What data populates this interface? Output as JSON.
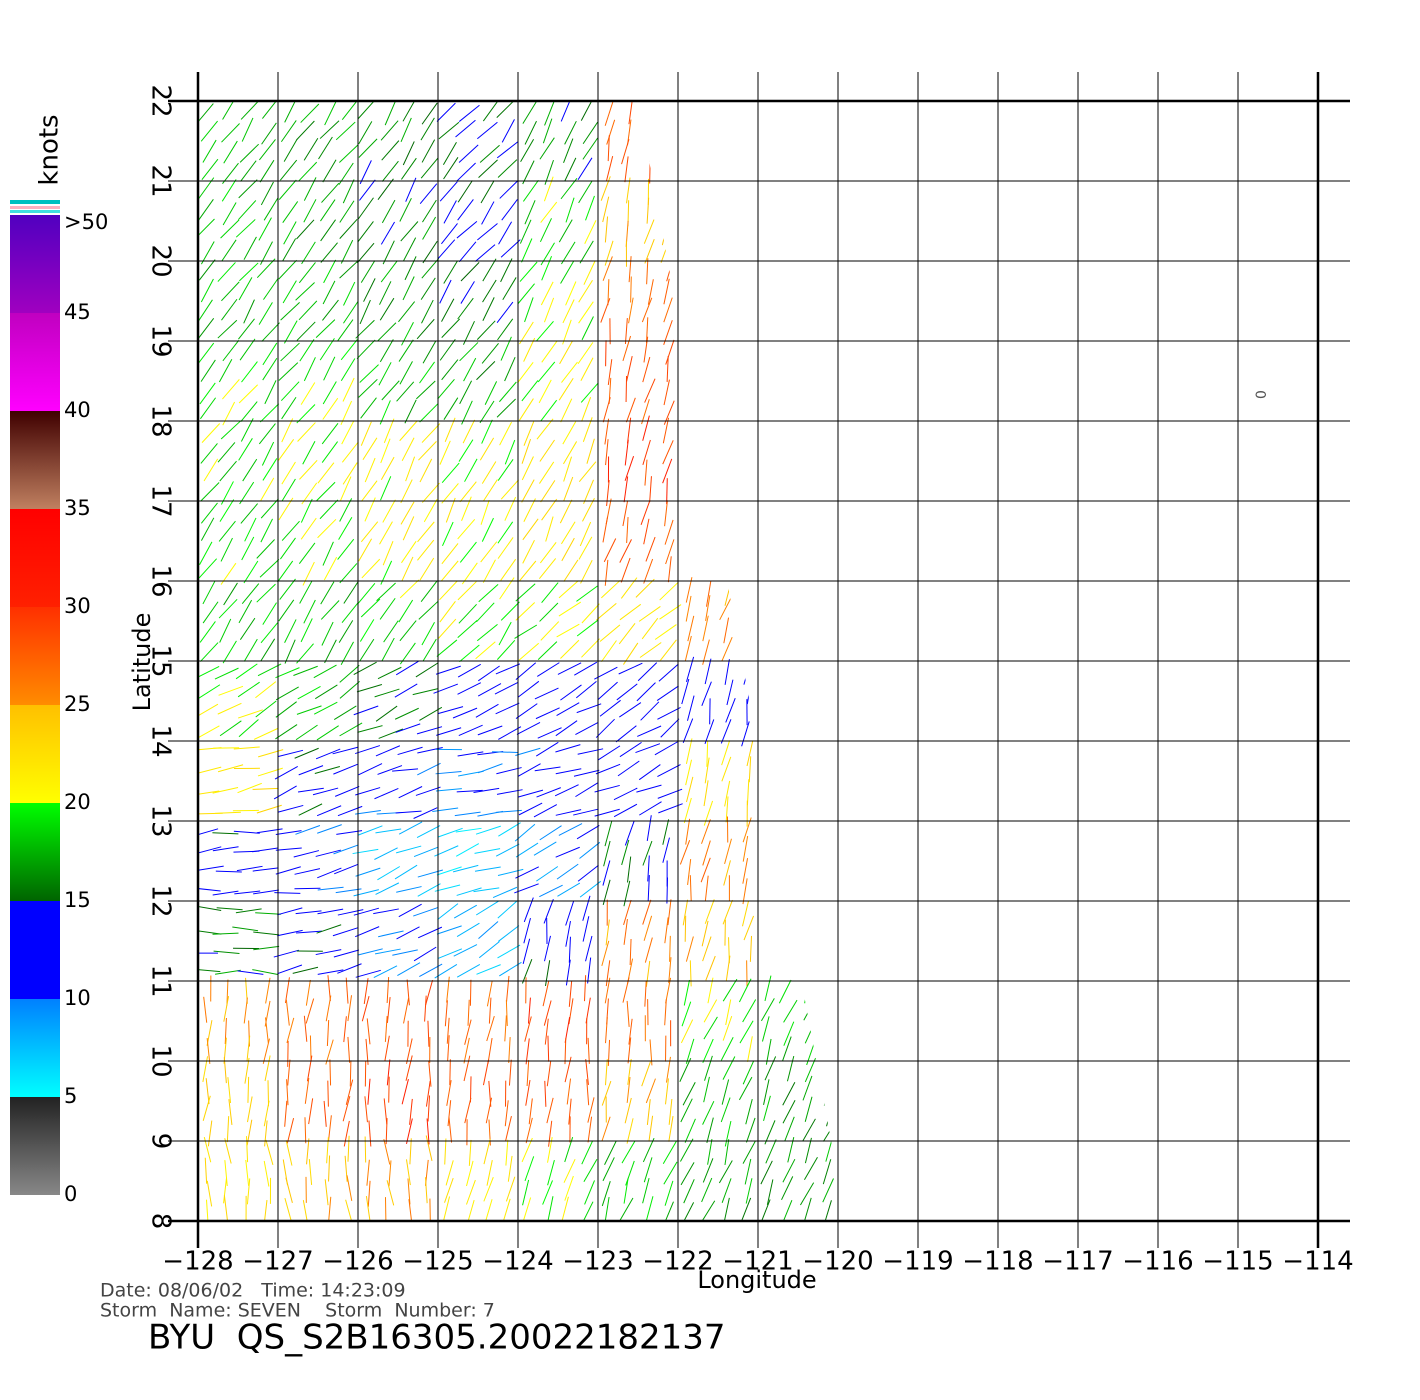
{
  "chart_data": {
    "type": "wind_vectors",
    "xlabel": "Longitude",
    "ylabel": "Latitude",
    "xlim": [
      -128,
      -114
    ],
    "ylim": [
      8,
      22
    ],
    "xticks": [
      {
        "value": -128,
        "label": "−128"
      },
      {
        "value": -127,
        "label": "−127"
      },
      {
        "value": -126,
        "label": "−126"
      },
      {
        "value": -125,
        "label": "−125"
      },
      {
        "value": -124,
        "label": "−124"
      },
      {
        "value": -123,
        "label": "−123"
      },
      {
        "value": -122,
        "label": "−122"
      },
      {
        "value": -121,
        "label": "−121"
      },
      {
        "value": -120,
        "label": "−120"
      },
      {
        "value": -119,
        "label": "−119"
      },
      {
        "value": -118,
        "label": "−118"
      },
      {
        "value": -117,
        "label": "−117"
      },
      {
        "value": -116,
        "label": "−116"
      },
      {
        "value": -115,
        "label": "−115"
      },
      {
        "value": -114,
        "label": "−114"
      }
    ],
    "yticks": [
      8,
      9,
      10,
      11,
      12,
      13,
      14,
      15,
      16,
      17,
      18,
      19,
      20,
      21,
      22
    ],
    "grid": true,
    "swath_edge": {
      "lat": [
        22,
        8
      ],
      "lon": [
        -122.5,
        -119.9
      ]
    },
    "wind": {
      "lon": [
        -127.5,
        -126.5,
        -125.5,
        -124.5,
        -123.5,
        -122.5,
        -121.5,
        -120.5,
        -119.5
      ],
      "lat": [
        21.5,
        20.5,
        19.5,
        18.5,
        17.5,
        16.5,
        15.5,
        14.5,
        13.5,
        12.5,
        11.5,
        10.5,
        9.5,
        8.5
      ],
      "speed": [
        [
          18,
          17,
          16,
          15,
          16,
          28,
          null,
          null,
          null
        ],
        [
          18,
          17,
          16,
          14,
          19,
          24,
          null,
          null,
          null
        ],
        [
          18,
          18,
          17,
          15,
          20,
          27,
          null,
          null,
          null
        ],
        [
          19,
          19,
          18,
          17,
          21,
          28,
          null,
          null,
          null
        ],
        [
          19,
          20,
          21,
          21,
          22,
          29,
          null,
          null,
          null
        ],
        [
          19,
          20,
          21,
          21,
          22,
          28,
          null,
          null,
          null
        ],
        [
          18,
          18,
          19,
          20,
          20,
          22,
          26,
          null,
          null
        ],
        [
          20,
          18,
          15,
          13,
          12,
          12,
          13,
          null,
          null
        ],
        [
          22,
          14,
          11,
          10,
          11,
          12,
          22,
          null,
          null
        ],
        [
          14,
          11,
          8,
          7,
          9,
          15,
          26,
          null,
          null
        ],
        [
          16,
          14,
          10,
          8,
          14,
          26,
          24,
          null,
          null
        ],
        [
          25,
          27,
          28,
          27,
          29,
          27,
          20,
          18,
          null
        ],
        [
          24,
          28,
          29,
          28,
          28,
          24,
          18,
          17,
          null
        ],
        [
          22,
          24,
          25,
          22,
          20,
          18,
          17,
          17,
          null
        ]
      ],
      "direction": [
        [
          55,
          55,
          55,
          50,
          60,
          80,
          null,
          null,
          null
        ],
        [
          55,
          55,
          55,
          50,
          60,
          80,
          null,
          null,
          null
        ],
        [
          55,
          55,
          55,
          55,
          60,
          80,
          null,
          null,
          null
        ],
        [
          55,
          55,
          55,
          55,
          60,
          78,
          null,
          null,
          null
        ],
        [
          55,
          55,
          58,
          60,
          62,
          78,
          null,
          null,
          null
        ],
        [
          55,
          55,
          58,
          60,
          62,
          75,
          null,
          null,
          null
        ],
        [
          55,
          55,
          55,
          50,
          40,
          45,
          70,
          null,
          null
        ],
        [
          30,
          30,
          25,
          25,
          30,
          35,
          80,
          null,
          null
        ],
        [
          10,
          20,
          15,
          10,
          20,
          25,
          80,
          null,
          null
        ],
        [
          5,
          10,
          20,
          20,
          30,
          80,
          80,
          null,
          null
        ],
        [
          0,
          10,
          20,
          30,
          80,
          80,
          80,
          null,
          null
        ],
        [
          85,
          85,
          85,
          85,
          85,
          85,
          70,
          70,
          null
        ],
        [
          85,
          85,
          85,
          85,
          85,
          80,
          70,
          70,
          null
        ],
        [
          95,
          95,
          95,
          80,
          70,
          70,
          70,
          70,
          null
        ]
      ]
    },
    "colorbar": {
      "title": "knots",
      "ticks": [
        0,
        5,
        10,
        15,
        20,
        25,
        30,
        35,
        40,
        45,
        {
          "value": 50,
          "label": ">50"
        }
      ],
      "stops": [
        [
          0,
          "#888888"
        ],
        [
          5,
          "#222222"
        ],
        [
          5,
          "#00ffff"
        ],
        [
          10,
          "#0080ff"
        ],
        [
          10,
          "#0000ff"
        ],
        [
          15,
          "#0000ff"
        ],
        [
          15,
          "#006400"
        ],
        [
          20,
          "#00ff00"
        ],
        [
          20,
          "#ffff00"
        ],
        [
          25,
          "#ffc000"
        ],
        [
          25,
          "#ff8c00"
        ],
        [
          30,
          "#ff3000"
        ],
        [
          30,
          "#ff2000"
        ],
        [
          35,
          "#ff0000"
        ],
        [
          35,
          "#c08060"
        ],
        [
          40,
          "#400000"
        ],
        [
          40,
          "#ff00ff"
        ],
        [
          45,
          "#c000c0"
        ],
        [
          45,
          "#a000c0"
        ],
        [
          50,
          "#5000c0"
        ]
      ]
    },
    "marker": {
      "lon": -114.73,
      "lat": 18.33,
      "label": "0"
    },
    "info": {
      "date": "Date: 08/06/02   Time: 14:23:09",
      "storm": "Storm  Name: SEVEN    Storm  Number: 7",
      "file": "BYU  QS_S2B16305.20022182137"
    }
  }
}
